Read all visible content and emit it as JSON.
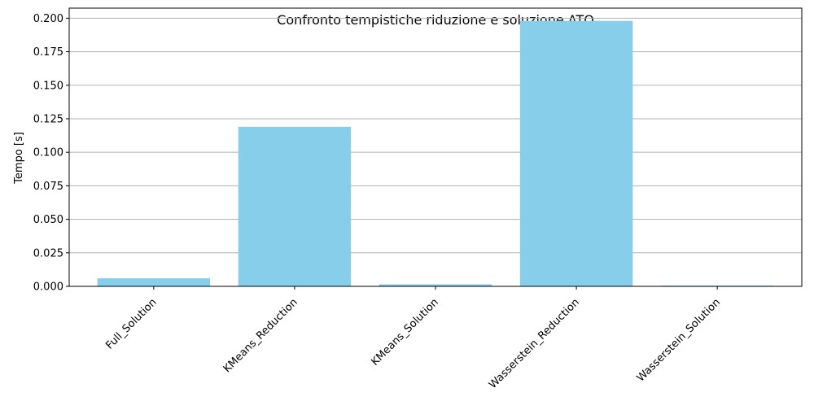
{
  "chart_data": {
    "type": "bar",
    "title": "Confronto tempistiche riduzione e soluzione ATO",
    "xlabel": "",
    "ylabel": "Tempo [s]",
    "categories": [
      "Full_Solution",
      "KMeans_Reduction",
      "KMeans_Solution",
      "Wasserstein_Reduction",
      "Wasserstein_Solution"
    ],
    "values": [
      0.006,
      0.119,
      0.0015,
      0.198,
      0.0005
    ],
    "ylim": [
      0,
      0.2075
    ],
    "yticks": [
      0.0,
      0.025,
      0.05,
      0.075,
      0.1,
      0.125,
      0.15,
      0.175,
      0.2
    ],
    "ytick_labels": [
      "0.000",
      "0.025",
      "0.050",
      "0.075",
      "0.100",
      "0.125",
      "0.150",
      "0.175",
      "0.200"
    ],
    "grid": "y",
    "legend": "none",
    "bar_color": "#87ceeb",
    "grid_color": "#b0b0b0"
  }
}
